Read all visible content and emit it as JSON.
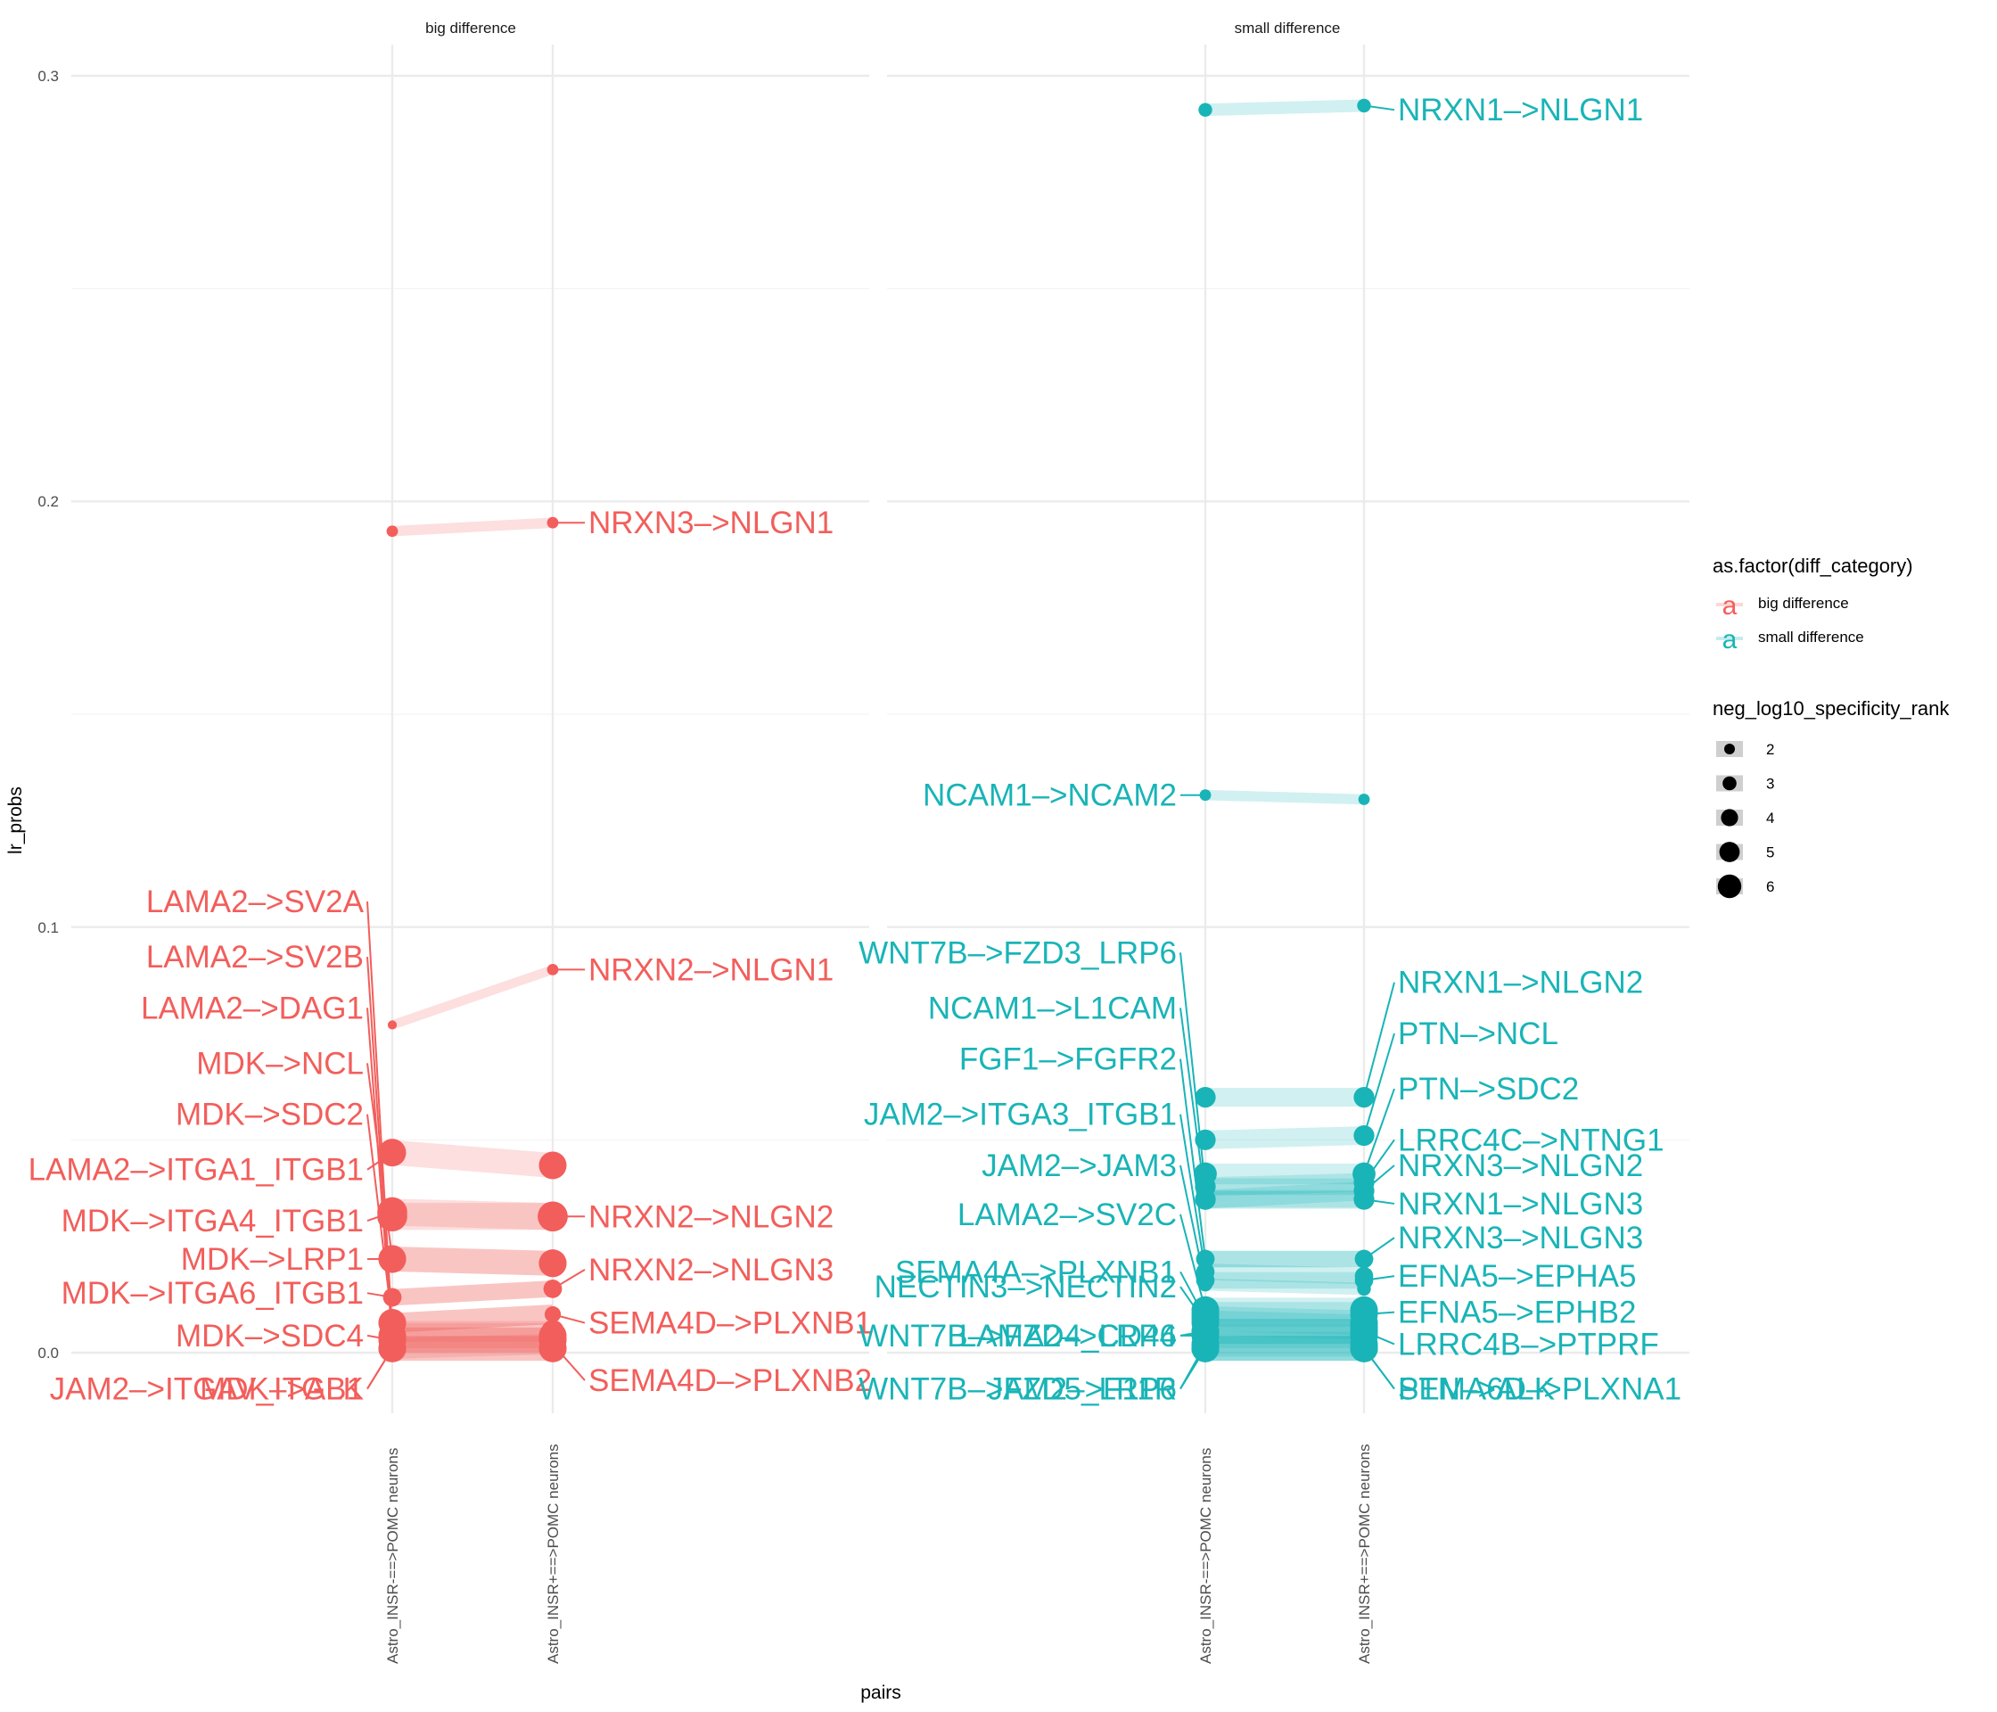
{
  "chart_data": {
    "type": "slope",
    "facets": [
      "big difference",
      "small difference"
    ],
    "x_categories": [
      "Astro_INSR-==>POMC neurons",
      "Astro_INSR+==>POMC neurons"
    ],
    "xlabel": "pairs",
    "ylabel": "lr_probs",
    "ylim": [
      -0.012,
      0.307
    ],
    "yticks": [
      0.0,
      0.1,
      0.2,
      0.3
    ],
    "ytick_labels": [
      "0.0",
      "0.1",
      "0.2",
      "0.3"
    ],
    "grid": true,
    "colors": {
      "big difference": "#F25E5B",
      "small difference": "#19B4B7"
    },
    "legend": {
      "placement": "right",
      "color_title": "as.factor(diff_category)",
      "color_entries": [
        "big difference",
        "small difference"
      ],
      "size_title": "neg_log10_specificity_rank",
      "size_entries": [
        "2",
        "3",
        "4",
        "5",
        "6"
      ]
    },
    "series": [
      {
        "facet": "big difference",
        "label": "NRXN3->NLGN1",
        "y1": 0.193,
        "y2": 0.195,
        "size1": 1.5,
        "size2": 1.5,
        "label_side": "right"
      },
      {
        "facet": "big difference",
        "label": "NRXN2->NLGN1",
        "y1": 0.077,
        "y2": 0.09,
        "size1": 1,
        "size2": 1.5,
        "label_side": "right"
      },
      {
        "facet": "big difference",
        "label": "LAMA2->ITGA1_ITGB1",
        "y1": 0.047,
        "y2": 0.044,
        "size1": 5,
        "size2": 5,
        "label_side": "left"
      },
      {
        "facet": "big difference",
        "label": "MDK->ITGA4_ITGB1",
        "y1": 0.033,
        "y2": 0.032,
        "size1": 5.5,
        "size2": 5.5,
        "label_side": "left"
      },
      {
        "facet": "big difference",
        "label": "NRXN2->NLGN2",
        "y1": 0.032,
        "y2": 0.032,
        "size1": 5.5,
        "size2": 5.5,
        "label_side": "right"
      },
      {
        "facet": "big difference",
        "label": "MDK->LRP1",
        "y1": 0.022,
        "y2": 0.021,
        "size1": 5,
        "size2": 5,
        "label_side": "left"
      },
      {
        "facet": "big difference",
        "label": "MDK->NCL",
        "y1": 0.022,
        "y2": 0.021,
        "size1": 5,
        "size2": 5,
        "label_side": "left"
      },
      {
        "facet": "big difference",
        "label": "NRXN2->NLGN3",
        "y1": 0.013,
        "y2": 0.015,
        "size1": 3,
        "size2": 3,
        "label_side": "right"
      },
      {
        "facet": "big difference",
        "label": "MDK->ITGA6_ITGB1",
        "y1": 0.013,
        "y2": 0.015,
        "size1": 3,
        "size2": 3,
        "label_side": "left"
      },
      {
        "facet": "big difference",
        "label": "SEMA4D->PLXNB1",
        "y1": 0.007,
        "y2": 0.009,
        "size1": 5,
        "size2": 2.5,
        "label_side": "right"
      },
      {
        "facet": "big difference",
        "label": "MDK->SDC2",
        "y1": 0.007,
        "y2": 0.009,
        "size1": 5,
        "size2": 2.5,
        "label_side": "left"
      },
      {
        "facet": "big difference",
        "label": "LAMA2->SV2A",
        "y1": 0.005,
        "y2": 0.005,
        "size1": 4,
        "size2": 4,
        "label_side": "left"
      },
      {
        "facet": "big difference",
        "label": "LAMA2->SV2B",
        "y1": 0.004,
        "y2": 0.004,
        "size1": 5,
        "size2": 5,
        "label_side": "left"
      },
      {
        "facet": "big difference",
        "label": "LAMA2->DAG1",
        "y1": 0.003,
        "y2": 0.003,
        "size1": 5,
        "size2": 5,
        "label_side": "left"
      },
      {
        "facet": "big difference",
        "label": "MDK->SDC4",
        "y1": 0.003,
        "y2": 0.003,
        "size1": 5,
        "size2": 5,
        "label_side": "left"
      },
      {
        "facet": "big difference",
        "label": "SEMA4D->PLXNB2",
        "y1": 0.001,
        "y2": 0.002,
        "size1": 5,
        "size2": 3,
        "label_side": "right"
      },
      {
        "facet": "big difference",
        "label": "JAM2->ITGAV_ITGB1",
        "y1": 0.001,
        "y2": 0.001,
        "size1": 5,
        "size2": 5,
        "label_side": "left"
      },
      {
        "facet": "big difference",
        "label": "MDK->ALK",
        "y1": 0.001,
        "y2": 0.001,
        "size1": 5,
        "size2": 5,
        "label_side": "left"
      },
      {
        "facet": "small difference",
        "label": "NRXN1->NLGN1",
        "y1": 0.292,
        "y2": 0.293,
        "size1": 2,
        "size2": 2,
        "label_side": "right"
      },
      {
        "facet": "small difference",
        "label": "NCAM1->NCAM2",
        "y1": 0.131,
        "y2": 0.13,
        "size1": 1.5,
        "size2": 1.5,
        "label_side": "left"
      },
      {
        "facet": "small difference",
        "label": "NRXN1->NLGN2",
        "y1": 0.06,
        "y2": 0.06,
        "size1": 3.5,
        "size2": 3.5,
        "label_side": "right"
      },
      {
        "facet": "small difference",
        "label": "PTN->NCL",
        "y1": 0.05,
        "y2": 0.051,
        "size1": 3.5,
        "size2": 3.5,
        "label_side": "right"
      },
      {
        "facet": "small difference",
        "label": "PTN->SDC2",
        "y1": 0.042,
        "y2": 0.042,
        "size1": 4,
        "size2": 4,
        "label_side": "right"
      },
      {
        "facet": "small difference",
        "label": "LRRC4C->NTNG1",
        "y1": 0.039,
        "y2": 0.04,
        "size1": 3.5,
        "size2": 3.5,
        "label_side": "right"
      },
      {
        "facet": "small difference",
        "label": "NRXN3->NLGN2",
        "y1": 0.036,
        "y2": 0.038,
        "size1": 3.5,
        "size2": 3.5,
        "label_side": "right"
      },
      {
        "facet": "small difference",
        "label": "NRXN1->NLGN3",
        "y1": 0.036,
        "y2": 0.036,
        "size1": 3.5,
        "size2": 3.5,
        "label_side": "right"
      },
      {
        "facet": "small difference",
        "label": "WNT7B->FZD3_LRP6",
        "y1": 0.039,
        "y2": 0.039,
        "size1": 3,
        "size2": 3,
        "label_side": "left"
      },
      {
        "facet": "small difference",
        "label": "NCAM1->L1CAM",
        "y1": 0.036,
        "y2": 0.036,
        "size1": 3,
        "size2": 3,
        "label_side": "left"
      },
      {
        "facet": "small difference",
        "label": "FGF1->FGFR2",
        "y1": 0.022,
        "y2": 0.022,
        "size1": 3,
        "size2": 3,
        "label_side": "left"
      },
      {
        "facet": "small difference",
        "label": "NRXN3->NLGN3",
        "y1": 0.022,
        "y2": 0.022,
        "size1": 3,
        "size2": 3,
        "label_side": "right"
      },
      {
        "facet": "small difference",
        "label": "JAM2->ITGA3_ITGB1",
        "y1": 0.019,
        "y2": 0.018,
        "size1": 3,
        "size2": 3,
        "label_side": "left"
      },
      {
        "facet": "small difference",
        "label": "EFNA5->EPHA5",
        "y1": 0.017,
        "y2": 0.017,
        "size1": 3,
        "size2": 3,
        "label_side": "right"
      },
      {
        "facet": "small difference",
        "label": "JAM2->JAM3",
        "y1": 0.016,
        "y2": 0.015,
        "size1": 2,
        "size2": 2,
        "label_side": "left"
      },
      {
        "facet": "small difference",
        "label": "LAMA2->SV2C",
        "y1": 0.01,
        "y2": 0.01,
        "size1": 5,
        "size2": 5,
        "label_side": "left"
      },
      {
        "facet": "small difference",
        "label": "EFNA5->EPHB2",
        "y1": 0.009,
        "y2": 0.009,
        "size1": 5,
        "size2": 5,
        "label_side": "right"
      },
      {
        "facet": "small difference",
        "label": "SEMA4A->PLXNB1",
        "y1": 0.008,
        "y2": 0.007,
        "size1": 5,
        "size2": 5,
        "label_side": "left"
      },
      {
        "facet": "small difference",
        "label": "NECTIN3->NECTIN2",
        "y1": 0.007,
        "y2": 0.006,
        "size1": 5,
        "size2": 5,
        "label_side": "left"
      },
      {
        "facet": "small difference",
        "label": "LRRC4B->PTPRF",
        "y1": 0.005,
        "y2": 0.005,
        "size1": 5,
        "size2": 5,
        "label_side": "right"
      },
      {
        "facet": "small difference",
        "label": "WNT7B->FZD4_LRP6",
        "y1": 0.005,
        "y2": 0.005,
        "size1": 5,
        "size2": 5,
        "label_side": "left"
      },
      {
        "facet": "small difference",
        "label": "LAMA2->CD44",
        "y1": 0.004,
        "y2": 0.004,
        "size1": 5,
        "size2": 5,
        "label_side": "left"
      },
      {
        "facet": "small difference",
        "label": "WNT7B->FZD5_LRP6",
        "y1": 0.002,
        "y2": 0.002,
        "size1": 5,
        "size2": 5,
        "label_side": "left"
      },
      {
        "facet": "small difference",
        "label": "JAM2->F11R",
        "y1": 0.001,
        "y2": 0.001,
        "size1": 5,
        "size2": 5,
        "label_side": "left"
      },
      {
        "facet": "small difference",
        "label": "SEMA6D->PLXNA1",
        "y1": 0.001,
        "y2": 0.001,
        "size1": 5,
        "size2": 5,
        "label_side": "right"
      },
      {
        "facet": "small difference",
        "label": "PTN->ALK",
        "y1": 0.001,
        "y2": 0.001,
        "size1": 5,
        "size2": 5,
        "label_side": "right"
      }
    ],
    "label_positions": {
      "big difference": {
        "NRXN3->NLGN1": [
          0.195,
          "right"
        ],
        "NRXN2->NLGN1": [
          0.09,
          "right"
        ],
        "NRXN2->NLGN2": [
          0.032,
          "right"
        ],
        "NRXN2->NLGN3": [
          0.0195,
          "right"
        ],
        "SEMA4D->PLXNB1": [
          0.007,
          "right"
        ],
        "SEMA4D->PLXNB2": [
          -0.0065,
          "right"
        ],
        "LAMA2->SV2A": [
          0.106,
          "left"
        ],
        "LAMA2->SV2B": [
          0.093,
          "left"
        ],
        "LAMA2->DAG1": [
          0.081,
          "left"
        ],
        "MDK->NCL": [
          0.068,
          "left"
        ],
        "MDK->SDC2": [
          0.056,
          "left"
        ],
        "LAMA2->ITGA1_ITGB1": [
          0.043,
          "left"
        ],
        "MDK->ITGA4_ITGB1": [
          0.031,
          "left"
        ],
        "MDK->LRP1": [
          0.022,
          "left"
        ],
        "MDK->ITGA6_ITGB1": [
          0.014,
          "left"
        ],
        "MDK->SDC4": [
          0.004,
          "left"
        ],
        "JAM2->ITGAV_ITGB1": [
          -0.0085,
          "left"
        ],
        "MDK->ALK": [
          -0.0085,
          "left"
        ]
      },
      "small difference": {
        "NRXN1->NLGN1": [
          0.292,
          "right"
        ],
        "NCAM1->NCAM2": [
          0.131,
          "left"
        ],
        "NRXN1->NLGN2": [
          0.087,
          "right"
        ],
        "PTN->NCL": [
          0.075,
          "right"
        ],
        "PTN->SDC2": [
          0.062,
          "right"
        ],
        "LRRC4C->NTNG1": [
          0.05,
          "right"
        ],
        "NRXN3->NLGN2": [
          0.044,
          "right"
        ],
        "NRXN1->NLGN3": [
          0.035,
          "right"
        ],
        "NRXN3->NLGN3": [
          0.027,
          "right"
        ],
        "EFNA5->EPHA5": [
          0.018,
          "right"
        ],
        "EFNA5->EPHB2": [
          0.0095,
          "right"
        ],
        "LRRC4B->PTPRF": [
          0.002,
          "right"
        ],
        "SEMA6D->PLXNA1": [
          -0.0085,
          "right"
        ],
        "PTN->ALK": [
          -0.0085,
          "right"
        ],
        "WNT7B->FZD3_LRP6": [
          0.094,
          "left"
        ],
        "NCAM1->L1CAM": [
          0.081,
          "left"
        ],
        "FGF1->FGFR2": [
          0.069,
          "left"
        ],
        "JAM2->ITGA3_ITGB1": [
          0.056,
          "left"
        ],
        "JAM2->JAM3": [
          0.044,
          "left"
        ],
        "LAMA2->SV2C": [
          0.0325,
          "left"
        ],
        "SEMA4A->PLXNB1": [
          0.019,
          "left"
        ],
        "NECTIN3->NECTIN2": [
          0.0155,
          "left"
        ],
        "WNT7B->FZD4_LRP6": [
          0.004,
          "left"
        ],
        "LAMA2->CD44": [
          0.004,
          "left"
        ],
        "WNT7B->FZD5_LRP6": [
          -0.0085,
          "left"
        ],
        "JAM2->F11R": [
          -0.0085,
          "left"
        ]
      }
    }
  }
}
